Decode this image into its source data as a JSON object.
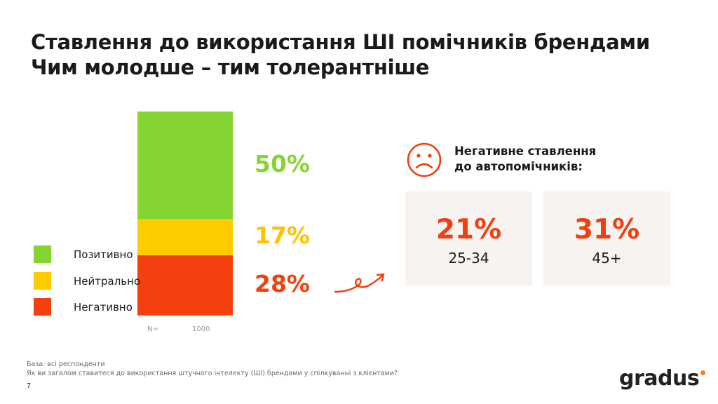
{
  "title_line1": "Ставлення до використання ШІ помічників брендами",
  "title_line2": "Чим молодше – тим толерантніше",
  "chart_data": {
    "type": "bar",
    "stacked": true,
    "categories": [
      "N= 1000"
    ],
    "series": [
      {
        "name": "Позитивно",
        "values": [
          50
        ],
        "label": "50%",
        "color": "#84d531"
      },
      {
        "name": "Нейтрально",
        "values": [
          17
        ],
        "label": "17%",
        "color": "#ffcc00"
      },
      {
        "name": "Негативно",
        "values": [
          28
        ],
        "label": "28%",
        "color": "#f43f0f"
      }
    ],
    "n_label": "N=",
    "n_value": "1000",
    "legend_position": "left"
  },
  "callout": {
    "icon": "sad-face-icon",
    "title_line1": "Негативне ставлення",
    "title_line2": "до автопомічників:",
    "cards": [
      {
        "value": "21%",
        "age": "25-34"
      },
      {
        "value": "31%",
        "age": "45+"
      }
    ]
  },
  "footer": {
    "base": "База: всі респонденти",
    "question": "Як ви загалом ставитеся до використання штучного інтелекту (ШІ) брендами у спілкуванні з клієнтами?",
    "page": "7"
  },
  "logo": "gradus",
  "colors": {
    "accent": "#f03f10",
    "logo_dot": "#f58220"
  }
}
